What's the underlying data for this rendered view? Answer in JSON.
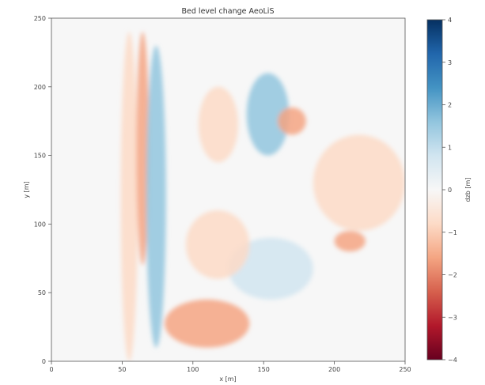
{
  "chart_data": {
    "type": "heatmap",
    "title": "Bed level change AeoLiS",
    "xlabel": "x [m]",
    "ylabel": "y [m]",
    "xlim": [
      0,
      250
    ],
    "ylim": [
      0,
      250
    ],
    "xticks": [
      0,
      50,
      100,
      150,
      200,
      250
    ],
    "yticks": [
      0,
      50,
      100,
      150,
      200,
      250
    ],
    "colorbar": {
      "label": "dzb [m]",
      "range": [
        -4,
        4
      ],
      "ticks": [
        -4,
        -3,
        -2,
        -1,
        0,
        1,
        2,
        3,
        4
      ],
      "colormap": "RdBu",
      "colors": [
        "#67001f",
        "#b2182b",
        "#d6604d",
        "#f4a582",
        "#fddbc7",
        "#f7f7f7",
        "#d1e5f0",
        "#92c5de",
        "#4393c3",
        "#2166ac",
        "#053061"
      ]
    },
    "features": [
      {
        "x": [
          49,
          61
        ],
        "y": [
          0,
          240
        ],
        "dzb": -0.9
      },
      {
        "x": [
          60,
          69
        ],
        "y": [
          70,
          240
        ],
        "dzb": -1.5
      },
      {
        "x": [
          67,
          81
        ],
        "y": [
          10,
          230
        ],
        "dzb": 1.2
      },
      {
        "x": [
          104,
          132
        ],
        "y": [
          145,
          200
        ],
        "dzb": -0.8
      },
      {
        "x": [
          138,
          168
        ],
        "y": [
          150,
          210
        ],
        "dzb": 1.5
      },
      {
        "x": [
          160,
          180
        ],
        "y": [
          165,
          185
        ],
        "dzb": -1.9
      },
      {
        "x": [
          185,
          250
        ],
        "y": [
          95,
          165
        ],
        "dzb": -1.2
      },
      {
        "x": [
          200,
          222
        ],
        "y": [
          80,
          95
        ],
        "dzb": -2.0
      },
      {
        "x": [
          125,
          185
        ],
        "y": [
          45,
          90
        ],
        "dzb": 1.0
      },
      {
        "x": [
          80,
          140
        ],
        "y": [
          10,
          45
        ],
        "dzb": -1.5
      },
      {
        "x": [
          95,
          140
        ],
        "y": [
          60,
          110
        ],
        "dzb": -0.6
      }
    ]
  }
}
